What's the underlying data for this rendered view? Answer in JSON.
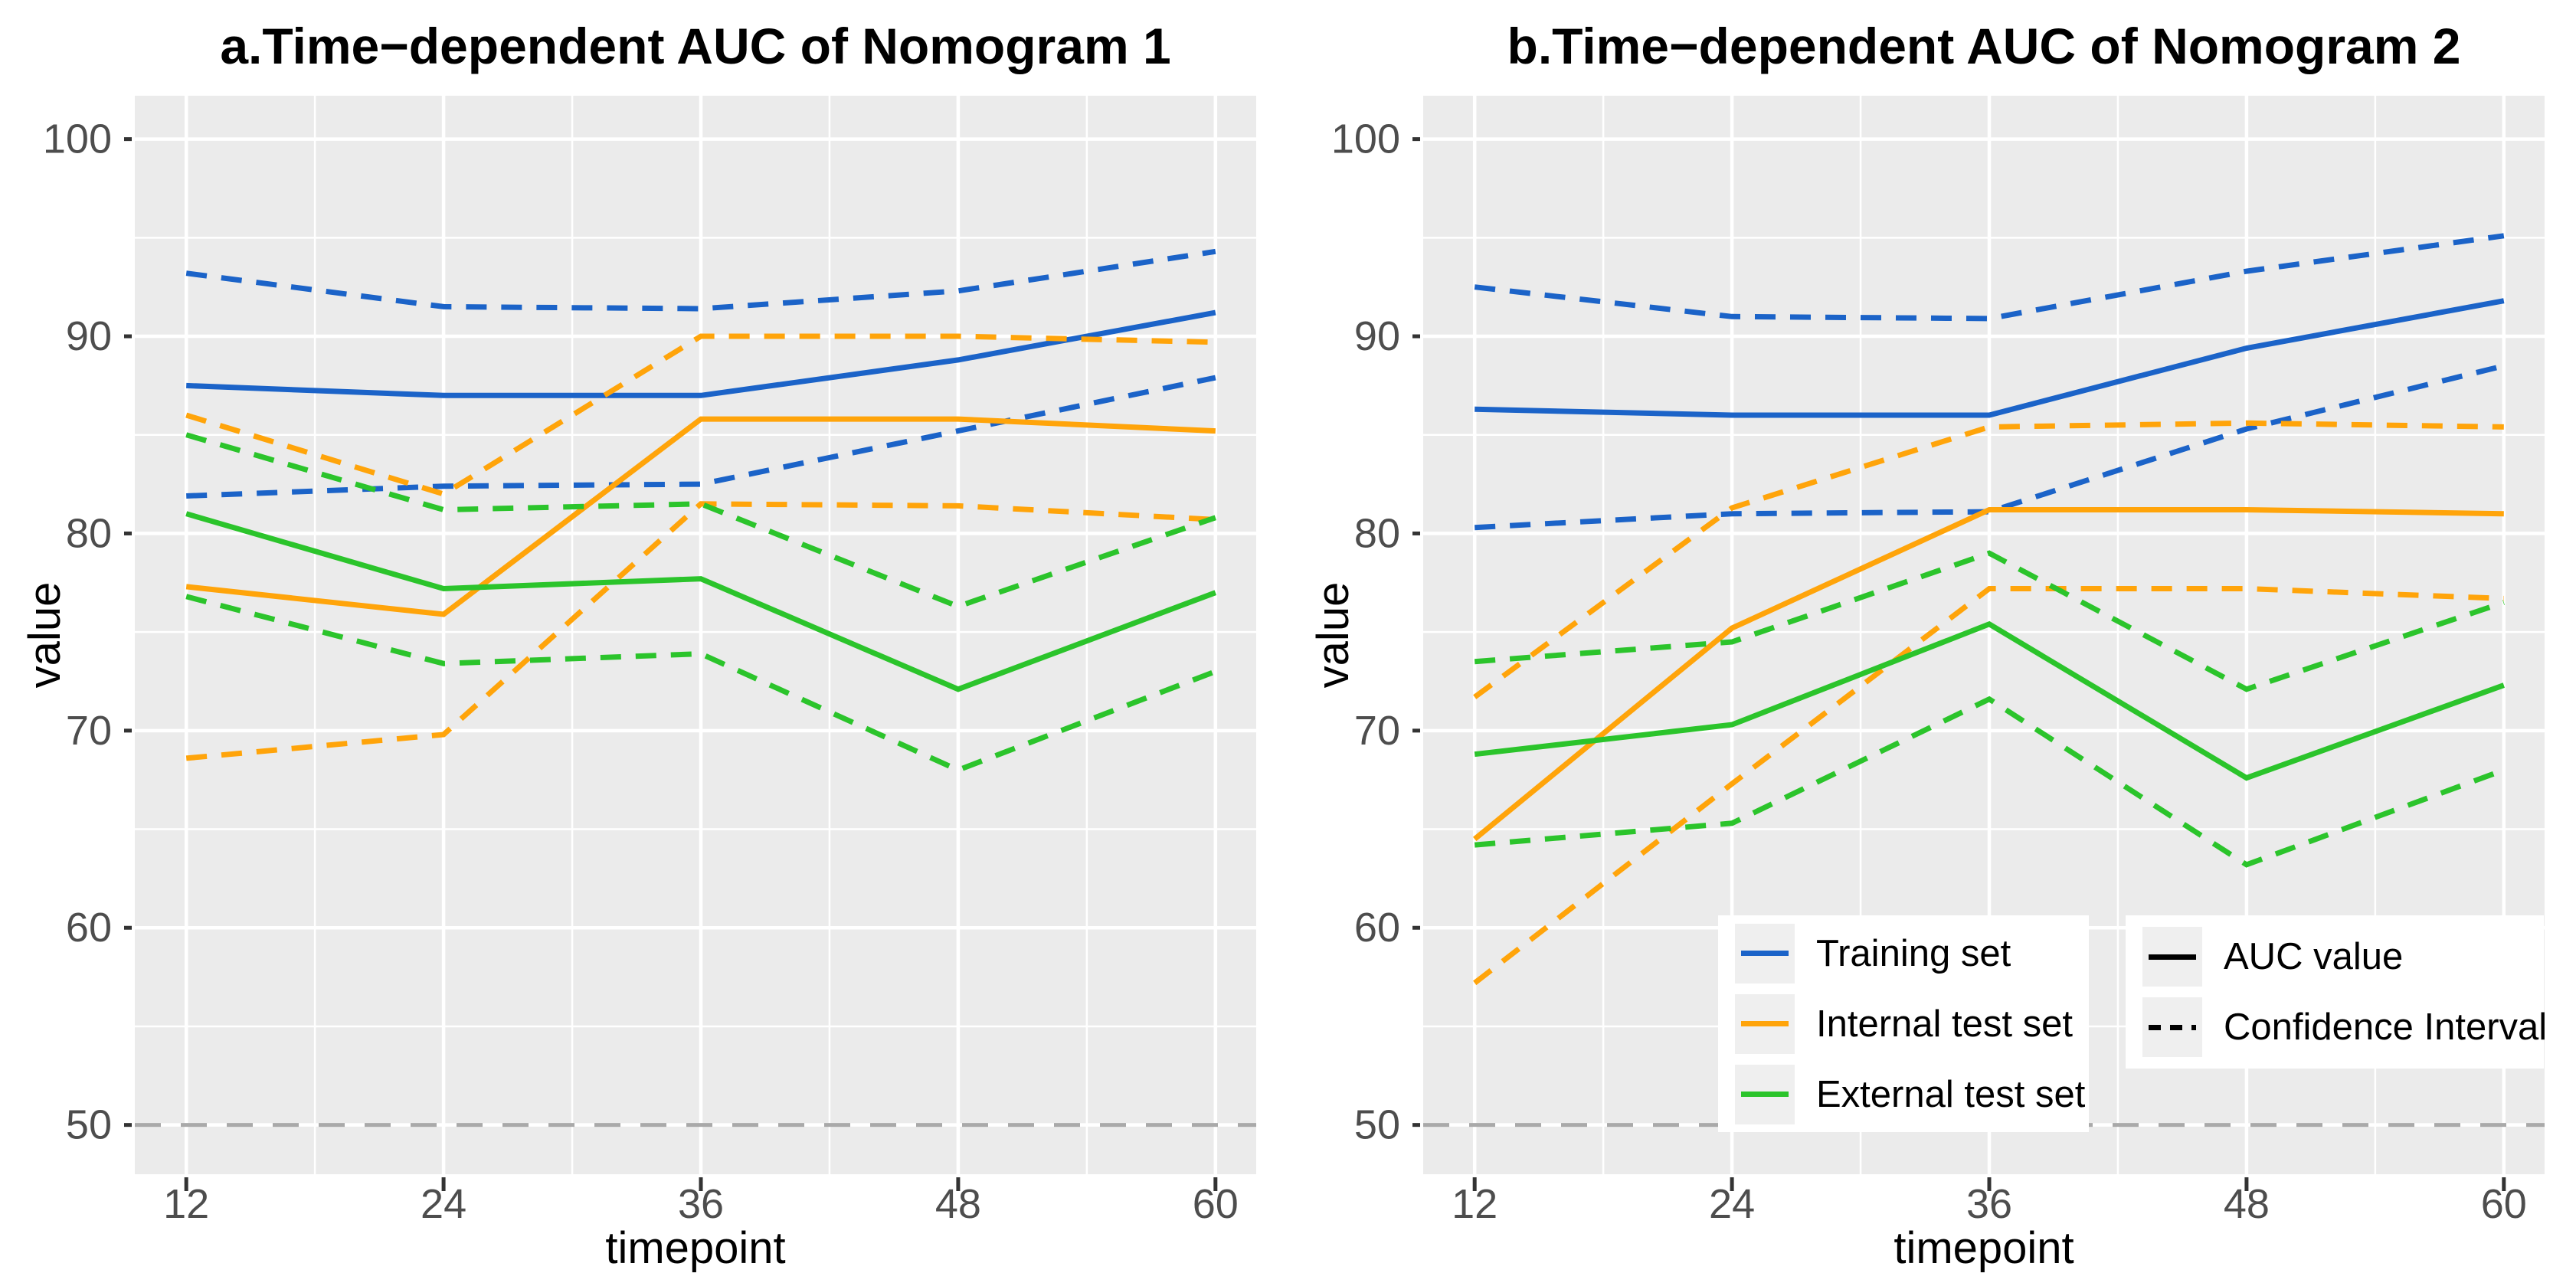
{
  "figure": {
    "y_axis_title": "value",
    "x_axis_title": "timepoint"
  },
  "colors": {
    "training": "#1B63C8",
    "internal": "#FFA40A",
    "external": "#2BC42B",
    "reference_line": "#A9A9A9",
    "panel_background": "#EBEBEB",
    "gridline": "#FFFFFF",
    "tick_mark": "#333333",
    "tick_label": "#4D4D4D",
    "legend_key_line": "#000000"
  },
  "chart_data": [
    {
      "type": "line",
      "title": "a.Time−dependent AUC of Nomogram 1",
      "xlabel": "timepoint",
      "ylabel": "value",
      "x": [
        12,
        24,
        36,
        48,
        60
      ],
      "x_ticks": [
        "12",
        "24",
        "36",
        "48",
        "60"
      ],
      "y_ticks": [
        "100",
        "90",
        "80",
        "70",
        "60",
        "50"
      ],
      "y_tick_values": [
        100,
        90,
        80,
        70,
        60,
        50
      ],
      "xlim": [
        9.6,
        61.9
      ],
      "ylim": [
        47.5,
        102.2
      ],
      "grid": true,
      "reference_line_y": 50,
      "series": [
        {
          "set": "training",
          "role": "auc",
          "name": "Training set AUC",
          "style": "solid",
          "values": [
            87.5,
            87.0,
            87.0,
            88.8,
            91.2
          ]
        },
        {
          "set": "training",
          "role": "ci-upper",
          "name": "Training set CI upper",
          "style": "dashed",
          "values": [
            93.2,
            91.5,
            91.4,
            92.3,
            94.3
          ]
        },
        {
          "set": "training",
          "role": "ci-lower",
          "name": "Training set CI lower",
          "style": "dashed",
          "values": [
            81.9,
            82.4,
            82.5,
            85.2,
            87.9
          ]
        },
        {
          "set": "internal",
          "role": "auc",
          "name": "Internal test set AUC",
          "style": "solid",
          "values": [
            77.3,
            75.9,
            85.8,
            85.8,
            85.2
          ]
        },
        {
          "set": "internal",
          "role": "ci-upper",
          "name": "Internal test set CI upper",
          "style": "dashed",
          "values": [
            86.0,
            82.0,
            90.0,
            90.0,
            89.7
          ]
        },
        {
          "set": "internal",
          "role": "ci-lower",
          "name": "Internal test set CI lower",
          "style": "dashed",
          "values": [
            68.6,
            69.8,
            81.5,
            81.4,
            80.7
          ]
        },
        {
          "set": "external",
          "role": "auc",
          "name": "External test set AUC",
          "style": "solid",
          "values": [
            81.0,
            77.2,
            77.7,
            72.1,
            77.0
          ]
        },
        {
          "set": "external",
          "role": "ci-upper",
          "name": "External test set CI upper",
          "style": "dashed",
          "values": [
            85.0,
            81.2,
            81.5,
            76.3,
            80.8
          ]
        },
        {
          "set": "external",
          "role": "ci-lower",
          "name": "External test set CI lower",
          "style": "dashed",
          "values": [
            76.8,
            73.4,
            73.9,
            68.0,
            73.0
          ]
        }
      ]
    },
    {
      "type": "line",
      "title": "b.Time−dependent AUC of Nomogram 2",
      "xlabel": "timepoint",
      "ylabel": "value",
      "x": [
        12,
        24,
        36,
        48,
        60
      ],
      "x_ticks": [
        "12",
        "24",
        "36",
        "48",
        "60"
      ],
      "y_ticks": [
        "100",
        "90",
        "80",
        "70",
        "60",
        "50"
      ],
      "y_tick_values": [
        100,
        90,
        80,
        70,
        60,
        50
      ],
      "xlim": [
        9.6,
        61.9
      ],
      "ylim": [
        47.5,
        102.2
      ],
      "grid": true,
      "reference_line_y": 50,
      "series": [
        {
          "set": "training",
          "role": "auc",
          "name": "Training set AUC",
          "style": "solid",
          "values": [
            86.3,
            86.0,
            86.0,
            89.4,
            91.8
          ]
        },
        {
          "set": "training",
          "role": "ci-upper",
          "name": "Training set CI upper",
          "style": "dashed",
          "values": [
            92.5,
            91.0,
            90.9,
            93.3,
            95.1
          ]
        },
        {
          "set": "training",
          "role": "ci-lower",
          "name": "Training set CI lower",
          "style": "dashed",
          "values": [
            80.3,
            81.0,
            81.1,
            85.3,
            88.5
          ]
        },
        {
          "set": "internal",
          "role": "auc",
          "name": "Internal test set AUC",
          "style": "solid",
          "values": [
            64.5,
            75.2,
            81.2,
            81.2,
            81.0
          ]
        },
        {
          "set": "internal",
          "role": "ci-upper",
          "name": "Internal test set CI upper",
          "style": "dashed",
          "values": [
            71.7,
            81.3,
            85.4,
            85.6,
            85.4
          ]
        },
        {
          "set": "internal",
          "role": "ci-lower",
          "name": "Internal test set CI lower",
          "style": "dashed",
          "values": [
            57.2,
            67.3,
            77.2,
            77.2,
            76.7
          ]
        },
        {
          "set": "external",
          "role": "auc",
          "name": "External test set AUC",
          "style": "solid",
          "values": [
            68.8,
            70.3,
            75.4,
            67.6,
            72.3
          ]
        },
        {
          "set": "external",
          "role": "ci-upper",
          "name": "External test set CI upper",
          "style": "dashed",
          "values": [
            73.5,
            74.5,
            79.0,
            72.1,
            76.5
          ]
        },
        {
          "set": "external",
          "role": "ci-lower",
          "name": "External test set CI lower",
          "style": "dashed",
          "values": [
            64.2,
            65.3,
            71.6,
            63.2,
            68.0
          ]
        }
      ]
    }
  ],
  "legend_series": {
    "items": [
      {
        "label": "Training set",
        "set": "training"
      },
      {
        "label": "Internal test set",
        "set": "internal"
      },
      {
        "label": "External test set",
        "set": "external"
      }
    ]
  },
  "legend_linetype": {
    "items": [
      {
        "label": "AUC value",
        "style": "solid"
      },
      {
        "label": "Confidence Interval",
        "style": "dashed"
      }
    ]
  }
}
